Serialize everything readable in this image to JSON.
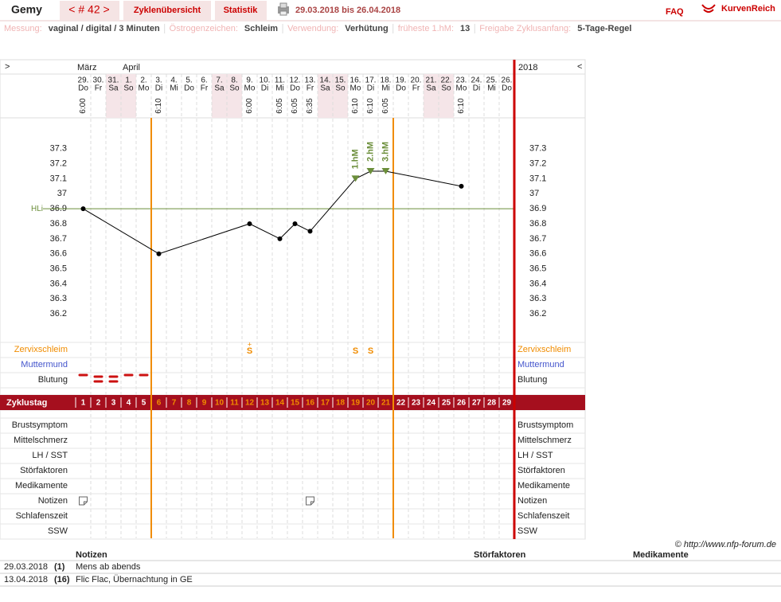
{
  "header": {
    "user": "Gemy",
    "cycle": "< # 42 >",
    "tabs": [
      "Zyklenübersicht",
      "Statistik"
    ],
    "range": "29.03.2018 bis 26.04.2018",
    "faq": "FAQ",
    "brand": "KurvenReich"
  },
  "settings": [
    {
      "label": "Messung:",
      "value": "vaginal / digital / 3 Minuten"
    },
    {
      "label": "Östrogenzeichen:",
      "value": "Schleim"
    },
    {
      "label": "Verwendung:",
      "value": "Verhütung"
    },
    {
      "label": "früheste 1.hM:",
      "value": 13
    },
    {
      "label": "Freigabe Zyklusanfang:",
      "value": "5-Tage-Regel"
    }
  ],
  "chart_data": {
    "type": "line",
    "nav_prev": ">",
    "nav_next": "<",
    "year": "2018",
    "months": [
      "März",
      null,
      null,
      "April",
      null,
      null,
      null,
      null,
      null,
      null,
      null,
      null,
      null,
      null,
      null,
      null,
      null,
      null,
      null,
      null,
      null,
      null,
      null,
      null,
      null,
      null,
      null,
      null,
      null
    ],
    "dates": [
      "29.",
      "30.",
      "31.",
      "1.",
      "2.",
      "3.",
      "4.",
      "5.",
      "6.",
      "7.",
      "8.",
      "9.",
      "10.",
      "11.",
      "12.",
      "13.",
      "14.",
      "15.",
      "16.",
      "17.",
      "18.",
      "19.",
      "20.",
      "21.",
      "22.",
      "23.",
      "24.",
      "25.",
      "26."
    ],
    "weekdays": [
      "Do",
      "Fr",
      "Sa",
      "So",
      "Mo",
      "Di",
      "Mi",
      "Do",
      "Fr",
      "Sa",
      "So",
      "Mo",
      "Di",
      "Mi",
      "Do",
      "Fr",
      "Sa",
      "So",
      "Mo",
      "Di",
      "Mi",
      "Do",
      "Fr",
      "Sa",
      "So",
      "Mo",
      "Di",
      "Mi",
      "Do"
    ],
    "weekend": [
      false,
      false,
      true,
      true,
      false,
      false,
      false,
      false,
      false,
      true,
      true,
      false,
      false,
      false,
      false,
      false,
      true,
      true,
      false,
      false,
      false,
      false,
      false,
      true,
      true,
      false,
      false,
      false,
      false
    ],
    "times": [
      "6:00",
      null,
      null,
      null,
      null,
      "6:10",
      null,
      null,
      null,
      null,
      null,
      "6:00",
      null,
      "6:05",
      "6:05",
      "6:35",
      null,
      null,
      "6:10",
      "6:10",
      "6:05",
      null,
      null,
      null,
      null,
      "6:10",
      null,
      null,
      null
    ],
    "cycle_day_label": "Zyklustag",
    "categories": [
      1,
      2,
      3,
      4,
      5,
      6,
      7,
      8,
      9,
      10,
      11,
      12,
      13,
      14,
      15,
      16,
      17,
      18,
      19,
      20,
      21,
      22,
      23,
      24,
      25,
      26,
      27,
      28,
      29
    ],
    "values": [
      36.9,
      null,
      null,
      null,
      null,
      36.6,
      null,
      null,
      null,
      null,
      null,
      36.8,
      null,
      36.7,
      36.8,
      36.75,
      null,
      null,
      37.1,
      37.15,
      37.15,
      null,
      null,
      null,
      null,
      37.05,
      null,
      null,
      null
    ],
    "color": "#000000",
    "ylim": [
      36.1,
      37.5
    ],
    "yticks": [
      37.3,
      37.2,
      37.1,
      37,
      36.9,
      36.8,
      36.7,
      36.6,
      36.5,
      36.4,
      36.3,
      36.2
    ],
    "reference_line": {
      "label": "HLi",
      "value": 36.9,
      "color": "#6b8e3a"
    },
    "hm_labels": [
      null,
      null,
      null,
      null,
      null,
      null,
      null,
      null,
      null,
      null,
      null,
      null,
      null,
      null,
      null,
      null,
      null,
      null,
      "1.hM",
      "2.hM",
      "3.hM",
      null,
      null,
      null,
      null,
      null,
      null,
      null,
      null
    ],
    "phase_lines_after": [
      5,
      21
    ],
    "phase_color": "#f08c00",
    "zervix": {
      "label": "Zervixschleim",
      "symbols": [
        null,
        null,
        null,
        null,
        null,
        null,
        null,
        null,
        null,
        null,
        null,
        "S",
        null,
        null,
        null,
        null,
        null,
        null,
        "S",
        "S",
        null,
        null,
        null,
        null,
        null,
        null,
        null,
        null,
        null
      ],
      "plus": [
        null,
        null,
        null,
        null,
        null,
        null,
        null,
        null,
        null,
        null,
        null,
        "+",
        null,
        null,
        null,
        null,
        null,
        null,
        null,
        null,
        null,
        null,
        null,
        null,
        null,
        null,
        null,
        null,
        null
      ]
    },
    "muttermund": {
      "label": "Muttermund"
    },
    "blutung": {
      "label": "Blutung",
      "values": [
        1,
        2,
        2,
        1,
        1,
        null,
        null,
        null,
        null,
        null,
        null,
        null,
        null,
        null,
        null,
        null,
        null,
        null,
        null,
        null,
        null,
        null,
        null,
        null,
        null,
        null,
        null,
        null,
        null
      ]
    },
    "rows": [
      "Brustsymptom",
      "Mittelschmerz",
      "LH / SST",
      "Störfaktoren",
      "Medikamente",
      "Notizen",
      "Schlafenszeit",
      "SSW"
    ],
    "note_icons": [
      true,
      false,
      false,
      false,
      false,
      false,
      false,
      false,
      false,
      false,
      false,
      false,
      false,
      false,
      false,
      true,
      false,
      false,
      false,
      false,
      false,
      false,
      false,
      false,
      false,
      false,
      false,
      false,
      false
    ]
  },
  "copyright": "© http://www.nfp-forum.de",
  "notes": {
    "headers": [
      "Notizen",
      "Störfaktoren",
      "Medikamente"
    ],
    "rows": [
      [
        "29.03.2018",
        "(1)",
        "Mens ab abends"
      ],
      [
        "13.04.2018",
        "(16)",
        "Flic Flac, Übernachtung in GE"
      ]
    ]
  }
}
